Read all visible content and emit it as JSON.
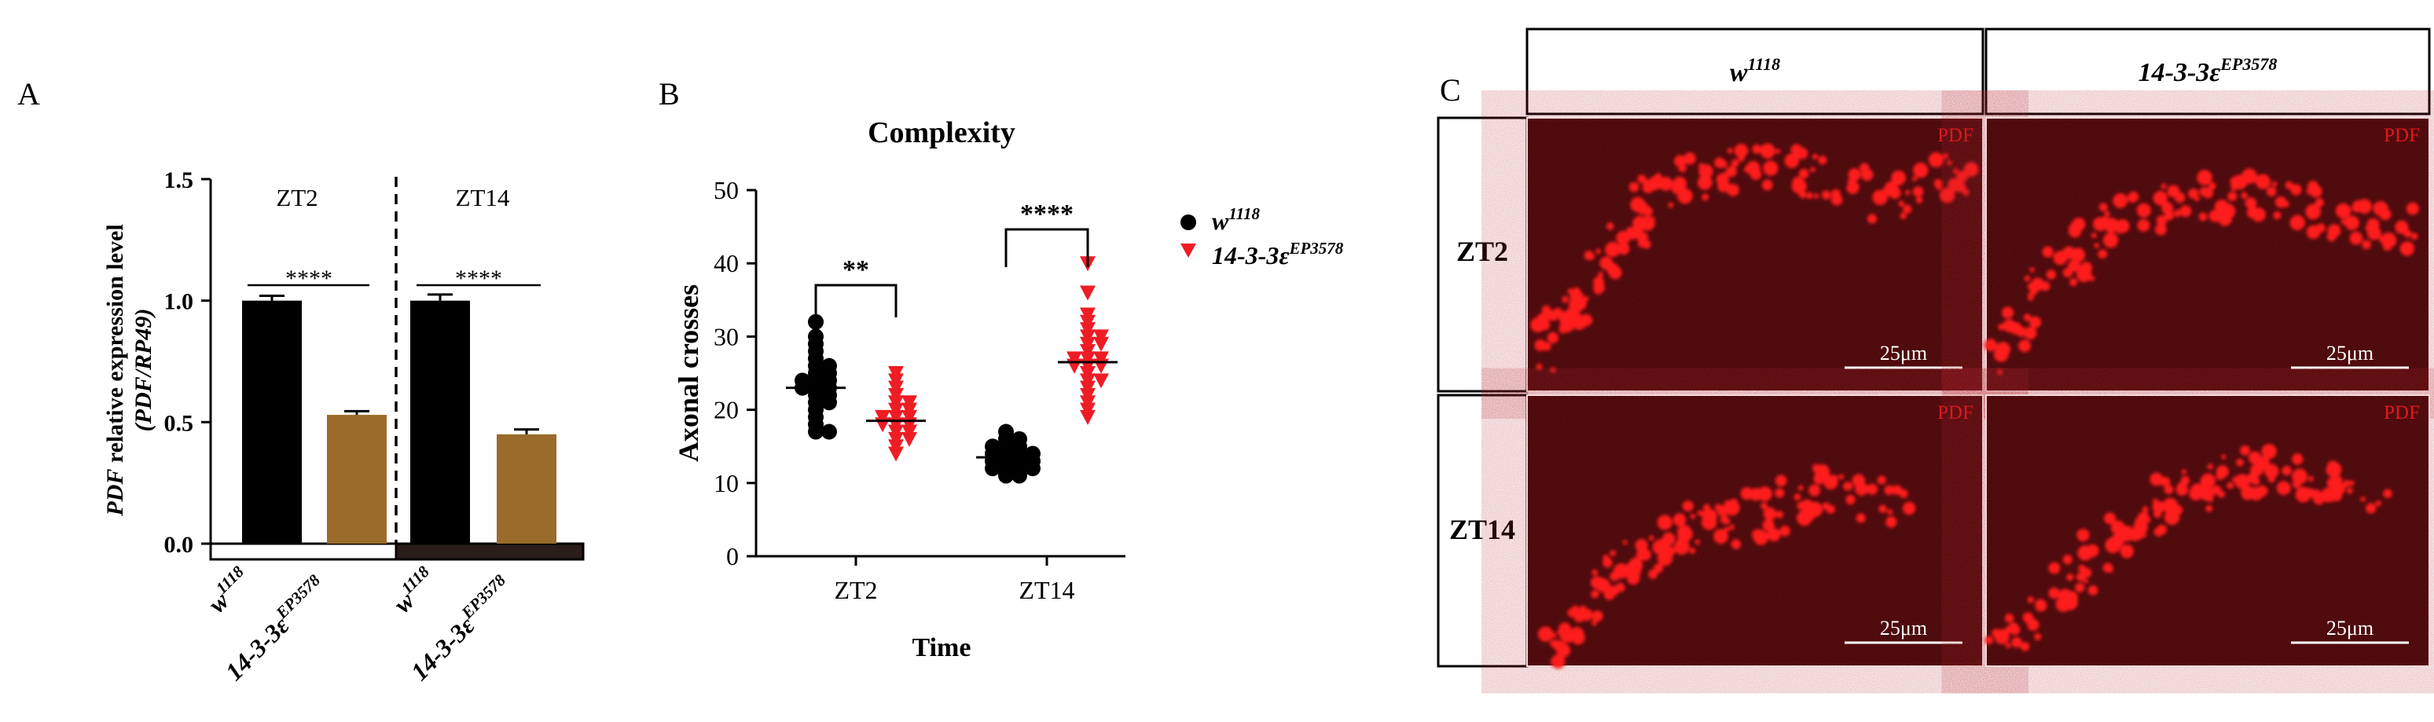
{
  "panels": {
    "A": {
      "letter": "A"
    },
    "B": {
      "letter": "B"
    },
    "C": {
      "letter": "C"
    }
  },
  "colors": {
    "black": "#000000",
    "brown": "#9a6b2a",
    "red": "#ee1c25",
    "dark_band": "#2a1d1a",
    "micro_bg": "#3a0506"
  },
  "genotypes": {
    "wt": {
      "base": "w",
      "sup": "1118"
    },
    "mut": {
      "base": "14-3-3ε",
      "sup": "EP3578"
    }
  },
  "chart_data": [
    {
      "type": "bar",
      "panel": "A",
      "ylabel_italic": "PDF",
      "ylabel_rest": " relative expression level",
      "ylabel_line2": "(PDF/RP49)",
      "yticks": [
        "0.0",
        "0.5",
        "1.0",
        "1.5"
      ],
      "ylim": [
        0,
        1.5
      ],
      "groups": [
        {
          "label": "ZT2",
          "significance": "****",
          "bars": [
            {
              "genotype": "wt",
              "value": 1.0,
              "error": 0.02,
              "color": "#000000"
            },
            {
              "genotype": "mut",
              "value": 0.53,
              "error": 0.015,
              "color": "#9a6b2a"
            }
          ]
        },
        {
          "label": "ZT14",
          "significance": "****",
          "bars": [
            {
              "genotype": "wt",
              "value": 1.0,
              "error": 0.025,
              "color": "#000000"
            },
            {
              "genotype": "mut",
              "value": 0.45,
              "error": 0.02,
              "color": "#9a6b2a"
            }
          ]
        }
      ]
    },
    {
      "type": "scatter",
      "panel": "B",
      "title": "Complexity",
      "xlabel": "Time",
      "ylabel": "Axonal crosses",
      "yticks": [
        "0",
        "10",
        "20",
        "30",
        "40",
        "50"
      ],
      "ylim": [
        0,
        50
      ],
      "categories": [
        "ZT2",
        "ZT14"
      ],
      "series": [
        {
          "genotype": "wt",
          "marker": "circle",
          "color": "#000000",
          "values": [
            [
              32,
              30,
              29,
              28,
              27,
              26,
              26,
              25,
              25,
              24,
              24,
              24,
              23,
              23,
              23,
              22,
              22,
              21,
              21,
              20,
              19,
              18,
              17,
              17
            ],
            [
              17,
              16,
              16,
              15,
              15,
              15,
              14,
              14,
              14,
              14,
              13,
              13,
              13,
              13,
              12,
              12,
              12,
              12,
              11,
              11
            ]
          ]
        },
        {
          "genotype": "mut",
          "marker": "triangle",
          "color": "#ee1c25",
          "values": [
            [
              25,
              24,
              23,
              22,
              21,
              21,
              20,
              20,
              19,
              19,
              19,
              18,
              18,
              18,
              17,
              17,
              16,
              16,
              15,
              14
            ],
            [
              40,
              36,
              33,
              32,
              31,
              30,
              30,
              29,
              29,
              28,
              27,
              27,
              27,
              26,
              26,
              26,
              25,
              24,
              24,
              23,
              22,
              21,
              20,
              19
            ]
          ]
        }
      ],
      "means": [
        [
          23
        ],
        [
          18.5
        ],
        [
          13.5
        ],
        [
          26.5
        ]
      ],
      "significance": [
        {
          "label": "**",
          "category": "ZT2"
        },
        {
          "label": "****",
          "category": "ZT14"
        }
      ]
    }
  ],
  "micrograph": {
    "column_headers": [
      {
        "base": "w",
        "sup": "1118"
      },
      {
        "base": "14-3-3ε",
        "sup": "EP3578"
      }
    ],
    "row_headers": [
      "ZT2",
      "ZT14"
    ],
    "channel_label": "PDF",
    "scale_bar": "25μm"
  }
}
